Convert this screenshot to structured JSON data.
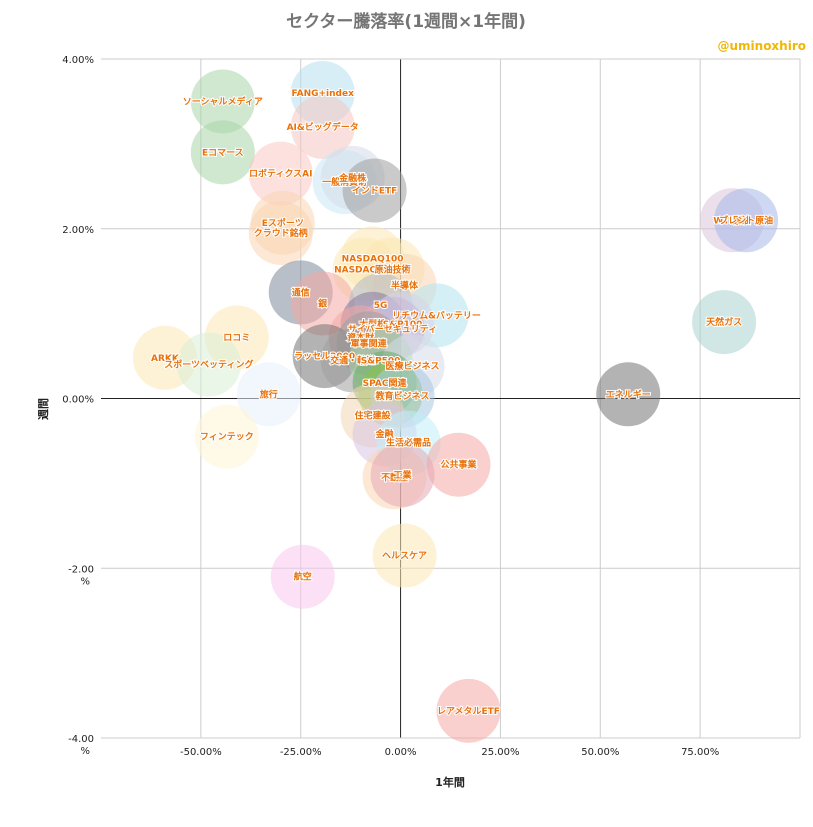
{
  "chart_data": {
    "type": "scatter",
    "title": "セクター騰落率(1週間×1年間)",
    "credit": "@uminoxhiro",
    "xlabel": "1年間",
    "ylabel": "週間",
    "xlim": [
      -0.75,
      1.0
    ],
    "ylim": [
      -0.04,
      0.04
    ],
    "x_ticks": [
      {
        "value": -0.5,
        "label": "-50.00%"
      },
      {
        "value": -0.25,
        "label": "-25.00%"
      },
      {
        "value": 0.0,
        "label": "0.00%"
      },
      {
        "value": 0.25,
        "label": "25.00%"
      },
      {
        "value": 0.5,
        "label": "50.00%"
      },
      {
        "value": 0.75,
        "label": "75.00%"
      }
    ],
    "y_ticks": [
      {
        "value": 0.04,
        "label": "4.00%"
      },
      {
        "value": 0.02,
        "label": "2.00%"
      },
      {
        "value": 0.0,
        "label": "0.00%"
      },
      {
        "value": -0.02,
        "label": "-2.00 %"
      },
      {
        "value": -0.04,
        "label": "-4.00 %"
      }
    ],
    "grid": true,
    "points": [
      {
        "label": "ソーシャルメディア",
        "x": -0.445,
        "y": 0.035,
        "color": "#a8d5a8"
      },
      {
        "label": "FANG+index",
        "x": -0.195,
        "y": 0.036,
        "color": "#b6e0ef"
      },
      {
        "label": "AI&ビッグデータ",
        "x": -0.195,
        "y": 0.032,
        "color": "#f4c7c3"
      },
      {
        "label": "Eコマース",
        "x": -0.445,
        "y": 0.029,
        "color": "#a8d5a8"
      },
      {
        "label": "ロボティクスAI",
        "x": -0.3,
        "y": 0.0265,
        "color": "#f9c8c4"
      },
      {
        "label": "一般消費財",
        "x": -0.14,
        "y": 0.0255,
        "color": "#c9e7f5"
      },
      {
        "label": "金融株",
        "x": -0.12,
        "y": 0.026,
        "color": "#d5dde7"
      },
      {
        "label": "インドETF",
        "x": -0.065,
        "y": 0.0245,
        "color": "#9e9e9e"
      },
      {
        "label": "Eスポーツ",
        "x": -0.295,
        "y": 0.0207,
        "color": "#fad6b3"
      },
      {
        "label": "クラウド銘柄",
        "x": -0.3,
        "y": 0.0195,
        "color": "#fad6b3"
      },
      {
        "label": "NASDAQ100",
        "x": -0.07,
        "y": 0.0165,
        "color": "#fce8b2"
      },
      {
        "label": "NASDAQ総合",
        "x": -0.09,
        "y": 0.0152,
        "color": "#fce8b2"
      },
      {
        "label": "原油技術",
        "x": -0.02,
        "y": 0.0152,
        "color": "#fce8b2"
      },
      {
        "label": "半導体",
        "x": 0.01,
        "y": 0.0133,
        "color": "#fad6b3"
      },
      {
        "label": "通信",
        "x": -0.25,
        "y": 0.0125,
        "color": "#7d8a9a"
      },
      {
        "label": "銀",
        "x": -0.195,
        "y": 0.0112,
        "color": "#f4a9a4"
      },
      {
        "label": "5G",
        "x": -0.05,
        "y": 0.011,
        "color": "#b0bcc8"
      },
      {
        "label": "リチウム&バッテリー",
        "x": 0.09,
        "y": 0.0098,
        "color": "#b2e2ef"
      },
      {
        "label": "大型株",
        "x": -0.07,
        "y": 0.0088,
        "color": "#8b7a9e"
      },
      {
        "label": "S&P100",
        "x": 0.005,
        "y": 0.0088,
        "color": "#d5d5e8"
      },
      {
        "label": "サイバーセキュリティ",
        "x": -0.02,
        "y": 0.0082,
        "color": "#c8b6d8"
      },
      {
        "label": "資本財",
        "x": -0.1,
        "y": 0.0072,
        "color": "#f4a9a4"
      },
      {
        "label": "軍事関連",
        "x": -0.08,
        "y": 0.0065,
        "color": "#9e9e9e"
      },
      {
        "label": "ロコミ",
        "x": -0.41,
        "y": 0.0072,
        "color": "#fce8b2"
      },
      {
        "label": "ARKK",
        "x": -0.59,
        "y": 0.0048,
        "color": "#fce8b2"
      },
      {
        "label": "スポーツベッティング",
        "x": -0.48,
        "y": 0.004,
        "color": "#d9eed6"
      },
      {
        "label": "ラッセル2000",
        "x": -0.19,
        "y": 0.005,
        "color": "#757575"
      },
      {
        "label": "交通・輸送",
        "x": -0.12,
        "y": 0.0045,
        "color": "#9e9e9e"
      },
      {
        "label": "S&P500",
        "x": -0.05,
        "y": 0.0045,
        "color": "#a8d5a8"
      },
      {
        "label": "医療ビジネス",
        "x": 0.03,
        "y": 0.0038,
        "color": "#d5dde7"
      },
      {
        "label": "旅行",
        "x": -0.33,
        "y": 0.0005,
        "color": "#e8f0fb"
      },
      {
        "label": "SPAC関連",
        "x": -0.04,
        "y": 0.0018,
        "color": "#6aaa64"
      },
      {
        "label": "NTT",
        "x": -0.025,
        "y": 0.0005,
        "color": "#8bc34a"
      },
      {
        "label": "教育ビジネス",
        "x": 0.005,
        "y": 0.0003,
        "color": "#a8c6e0"
      },
      {
        "label": "エネルギー",
        "x": 0.57,
        "y": 0.0005,
        "color": "#757575"
      },
      {
        "label": "住宅建設",
        "x": -0.07,
        "y": -0.002,
        "color": "#f2d5b5"
      },
      {
        "label": "金融",
        "x": -0.04,
        "y": -0.0042,
        "color": "#d9c4e3"
      },
      {
        "label": "生活必需品",
        "x": 0.02,
        "y": -0.0052,
        "color": "#bfeef7"
      },
      {
        "label": "フィンテック",
        "x": -0.435,
        "y": -0.0045,
        "color": "#fff4d6"
      },
      {
        "label": "公共事業",
        "x": 0.145,
        "y": -0.0078,
        "color": "#f4a9a4"
      },
      {
        "label": "不動産",
        "x": -0.015,
        "y": -0.0093,
        "color": "#fad6b3"
      },
      {
        "label": "工業",
        "x": 0.005,
        "y": -0.009,
        "color": "#e6a8b4"
      },
      {
        "label": "ヘルスケア",
        "x": 0.01,
        "y": -0.0185,
        "color": "#fce8b2"
      },
      {
        "label": "航空",
        "x": -0.245,
        "y": -0.021,
        "color": "#f9c8ef"
      },
      {
        "label": "レアメタルETF",
        "x": 0.17,
        "y": -0.0368,
        "color": "#f4a9a4"
      },
      {
        "label": "天然ガス",
        "x": 0.81,
        "y": 0.009,
        "color": "#a9d4d0"
      },
      {
        "label": "WTI原油",
        "x": 0.83,
        "y": 0.021,
        "color": "#d9c4d8"
      },
      {
        "label": "ブレント原油",
        "x": 0.865,
        "y": 0.021,
        "color": "#a8b8ea"
      }
    ]
  }
}
